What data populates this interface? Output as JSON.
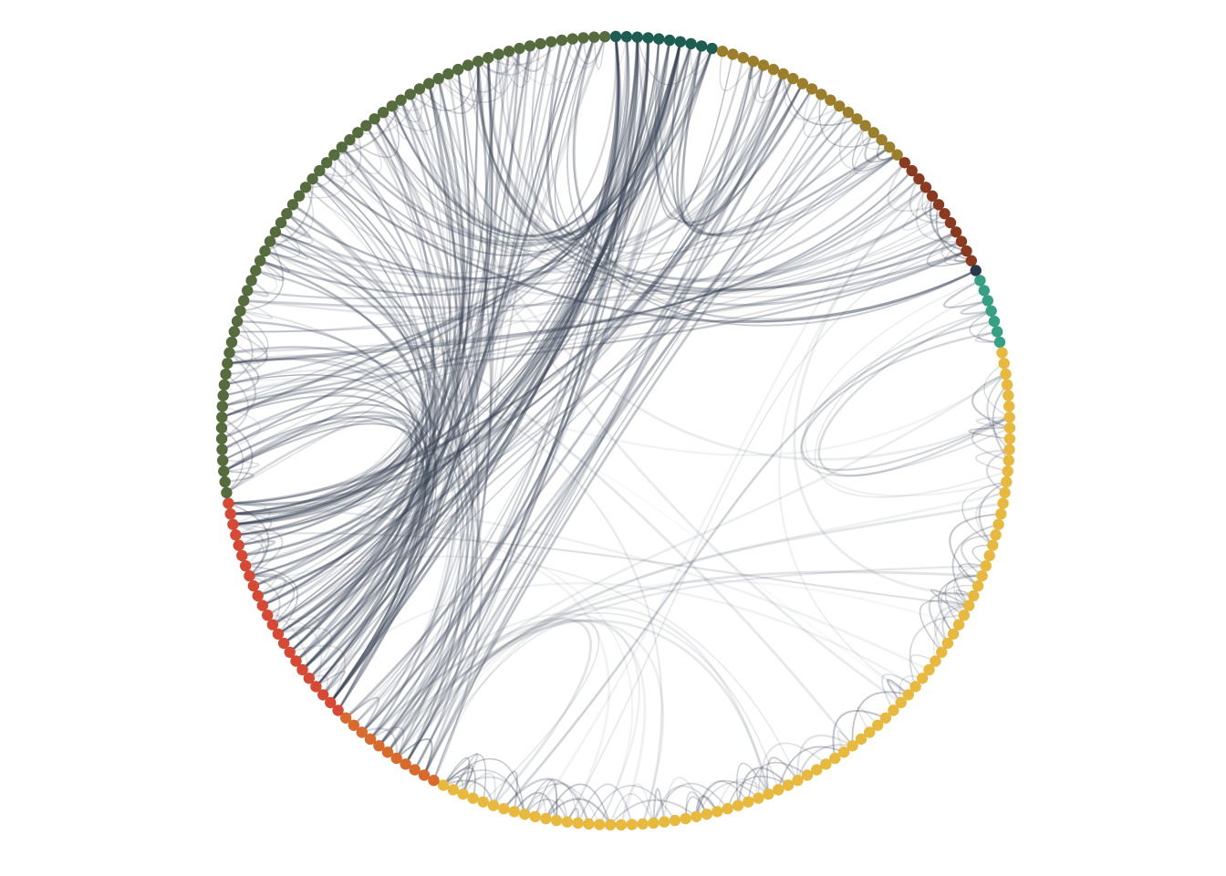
{
  "diagram": {
    "type": "hierarchical-edge-bundling",
    "layout": "circular",
    "node_shape": "circle",
    "edge_color": "#3b4556",
    "background": "#ffffff",
    "groups": [
      {
        "id": "g1",
        "color": "#1f5c52",
        "nodes": 10
      },
      {
        "id": "g2",
        "color": "#9b7f2d",
        "nodes": 20
      },
      {
        "id": "g3",
        "color": "#8b3a22",
        "nodes": 12
      },
      {
        "id": "g4",
        "color": "#283a48",
        "nodes": 1
      },
      {
        "id": "g5",
        "color": "#35a083",
        "nodes": 7
      },
      {
        "id": "g6",
        "color": "#e7b93e",
        "nodes": 82
      },
      {
        "id": "g7",
        "color": "#d76a2c",
        "nodes": 11
      },
      {
        "id": "g8",
        "color": "#d64a35",
        "nodes": 23
      },
      {
        "id": "g9",
        "color": "#566b3e",
        "nodes": 63
      }
    ],
    "bundles": [
      {
        "from": "g9",
        "to": "g8",
        "count": 70,
        "opacity": 0.3
      },
      {
        "from": "g9",
        "to": "g1",
        "count": 26,
        "opacity": 0.3
      },
      {
        "from": "g9",
        "to": "g7",
        "count": 18,
        "opacity": 0.25
      },
      {
        "from": "g8",
        "to": "g1",
        "count": 24,
        "opacity": 0.35
      },
      {
        "from": "g8",
        "to": "g2",
        "count": 12,
        "opacity": 0.3
      },
      {
        "from": "g7",
        "to": "g1",
        "count": 12,
        "opacity": 0.3
      },
      {
        "from": "g7",
        "to": "g2",
        "count": 10,
        "opacity": 0.25
      },
      {
        "from": "g9",
        "to": "g3",
        "count": 20,
        "opacity": 0.3
      },
      {
        "from": "g9",
        "to": "g4",
        "count": 4,
        "opacity": 0.4
      },
      {
        "from": "g9",
        "to": "g2",
        "count": 10,
        "opacity": 0.2
      },
      {
        "from": "g1",
        "to": "g2",
        "count": 8,
        "opacity": 0.3
      },
      {
        "from": "g8",
        "to": "g6",
        "count": 6,
        "opacity": 0.15
      },
      {
        "from": "g7",
        "to": "g6",
        "count": 14,
        "opacity": 0.12
      },
      {
        "from": "g9",
        "to": "g6",
        "count": 6,
        "opacity": 0.1
      },
      {
        "from": "g3",
        "to": "g6",
        "count": 4,
        "opacity": 0.12
      },
      {
        "from": "g5",
        "to": "g6",
        "count": 6,
        "opacity": 0.2
      }
    ],
    "local_bundles": [
      {
        "group": "g6",
        "count": 90,
        "opacity": 0.25
      },
      {
        "group": "g9",
        "count": 60,
        "opacity": 0.22
      },
      {
        "group": "g8",
        "count": 24,
        "opacity": 0.22
      },
      {
        "group": "g2",
        "count": 16,
        "opacity": 0.25
      },
      {
        "group": "g3",
        "count": 12,
        "opacity": 0.3
      },
      {
        "group": "g5",
        "count": 6,
        "opacity": 0.3
      },
      {
        "group": "g7",
        "count": 6,
        "opacity": 0.3
      },
      {
        "group": "g1",
        "count": 4,
        "opacity": 0.25
      }
    ]
  }
}
